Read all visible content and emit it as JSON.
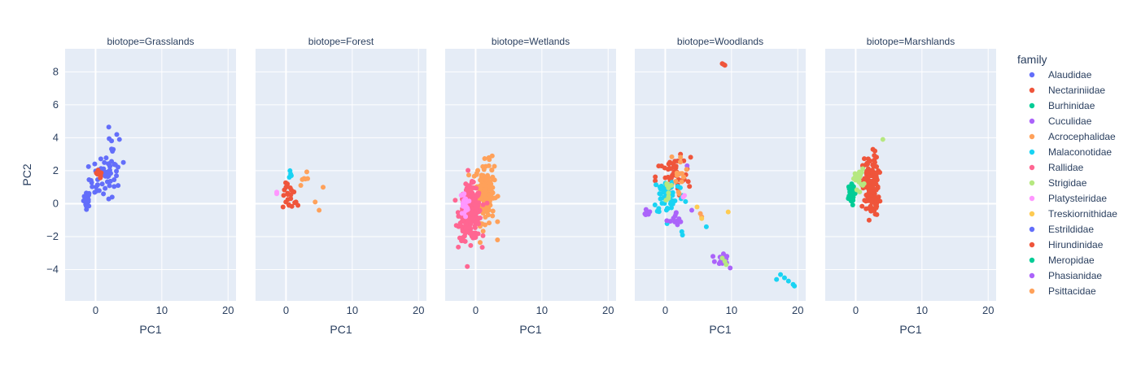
{
  "chart_data": {
    "type": "scatter",
    "x_label": "PC1",
    "y_label": "PC2",
    "xlim": [
      -4.6,
      21.2
    ],
    "ylim": [
      -5.9,
      9.4
    ],
    "x_ticks": [
      0,
      10,
      20
    ],
    "y_ticks": [
      -4,
      -2,
      0,
      2,
      4,
      6,
      8
    ],
    "grid": true,
    "legend": {
      "title": "family",
      "position": "right",
      "items": [
        {
          "name": "Alaudidae",
          "color": "#636efa"
        },
        {
          "name": "Nectariniidae",
          "color": "#EF553B"
        },
        {
          "name": "Burhinidae",
          "color": "#00cc96"
        },
        {
          "name": "Cuculidae",
          "color": "#ab63fa"
        },
        {
          "name": "Acrocephalidae",
          "color": "#FFA15A"
        },
        {
          "name": "Malaconotidae",
          "color": "#19d3f3"
        },
        {
          "name": "Rallidae",
          "color": "#FF6692"
        },
        {
          "name": "Strigidae",
          "color": "#B6E880"
        },
        {
          "name": "Platysteiridae",
          "color": "#FF97FF"
        },
        {
          "name": "Treskiornithidae",
          "color": "#FECB52"
        },
        {
          "name": "Estrildidae",
          "color": "#636efa"
        },
        {
          "name": "Hirundinidae",
          "color": "#EF553B"
        },
        {
          "name": "Meropidae",
          "color": "#00cc96"
        },
        {
          "name": "Phasianidae",
          "color": "#ab63fa"
        },
        {
          "name": "Psittacidae",
          "color": "#FFA15A"
        }
      ]
    },
    "facets": [
      {
        "title": "biotope=Grasslands",
        "groups": [
          {
            "family": "Alaudidae",
            "clusters": [
              {
                "cx": -1.3,
                "cy": 0.3,
                "sx": 0.25,
                "sy": 0.25,
                "n": 25
              },
              {
                "cx": 1.2,
                "cy": 1.5,
                "sx": 1.1,
                "sy": 0.6,
                "n": 45
              },
              {
                "cx": 2.5,
                "cy": 2.9,
                "sx": 0.8,
                "sy": 0.7,
                "n": 14
              }
            ],
            "points": [
              [
                3.2,
                4.2
              ],
              [
                3.6,
                3.9
              ],
              [
                2.5,
                0.4
              ],
              [
                3.4,
                1.1
              ]
            ]
          },
          {
            "family": "Nectariniidae",
            "clusters": [
              {
                "cx": 0.4,
                "cy": 1.7,
                "sx": 0.3,
                "sy": 0.2,
                "n": 10
              }
            ],
            "points": []
          }
        ]
      },
      {
        "title": "biotope=Forest",
        "groups": [
          {
            "family": "Nectariniidae",
            "clusters": [
              {
                "cx": 0.6,
                "cy": 0.4,
                "sx": 0.55,
                "sy": 0.4,
                "n": 18
              }
            ],
            "points": [
              [
                0.2,
                1.2
              ],
              [
                0.0,
                1.0
              ],
              [
                1.5,
                0.1
              ],
              [
                1.8,
                -0.1
              ]
            ]
          },
          {
            "family": "Acrocephalidae",
            "clusters": [
              {
                "cx": 2.7,
                "cy": 1.6,
                "sx": 0.3,
                "sy": 0.35,
                "n": 6
              }
            ],
            "points": [
              [
                4.4,
                0.1
              ],
              [
                5.0,
                -0.4
              ],
              [
                5.6,
                1.0
              ]
            ]
          },
          {
            "family": "Malaconotidae",
            "clusters": [],
            "points": [
              [
                0.6,
                2.0
              ],
              [
                0.7,
                1.8
              ],
              [
                0.5,
                1.6
              ],
              [
                0.8,
                1.7
              ]
            ]
          },
          {
            "family": "Platysteiridae",
            "clusters": [],
            "points": [
              [
                -1.4,
                0.6
              ],
              [
                -1.4,
                0.7
              ]
            ]
          }
        ]
      },
      {
        "title": "biotope=Wetlands",
        "groups": [
          {
            "family": "Acrocephalidae",
            "clusters": [
              {
                "cx": 1.4,
                "cy": 0.7,
                "sx": 0.7,
                "sy": 0.9,
                "n": 170
              }
            ],
            "points": [
              [
                2.5,
                2.9
              ],
              [
                3.3,
                -2.2
              ],
              [
                2.0,
                2.3
              ]
            ]
          },
          {
            "family": "Rallidae",
            "clusters": [
              {
                "cx": -0.8,
                "cy": -0.6,
                "sx": 0.8,
                "sy": 0.8,
                "n": 260
              }
            ],
            "points": []
          },
          {
            "family": "Platysteiridae",
            "clusters": [
              {
                "cx": -1.7,
                "cy": 0.0,
                "sx": 0.3,
                "sy": 0.35,
                "n": 22
              }
            ],
            "points": []
          }
        ]
      },
      {
        "title": "biotope=Woodlands",
        "groups": [
          {
            "family": "Nectariniidae",
            "clusters": [
              {
                "cx": 1.2,
                "cy": 1.6,
                "sx": 1.3,
                "sy": 0.6,
                "n": 45
              }
            ],
            "points": [
              [
                8.6,
                8.5
              ],
              [
                9.0,
                8.4
              ],
              [
                8.8,
                8.45
              ],
              [
                2.3,
                3.0
              ],
              [
                2.8,
                2.6
              ]
            ]
          },
          {
            "family": "Malaconotidae",
            "clusters": [
              {
                "cx": 0.5,
                "cy": 0.5,
                "sx": 1.2,
                "sy": 0.6,
                "n": 55
              }
            ],
            "points": [
              [
                2.5,
                -1.7
              ],
              [
                2.6,
                -1.9
              ],
              [
                6.2,
                -1.4
              ],
              [
                16.8,
                -4.6
              ],
              [
                17.4,
                -4.3
              ],
              [
                18.0,
                -4.5
              ],
              [
                18.6,
                -4.7
              ],
              [
                19.3,
                -4.9
              ],
              [
                19.5,
                -5.0
              ]
            ]
          },
          {
            "family": "Cuculidae",
            "clusters": [
              {
                "cx": 1.7,
                "cy": -1.1,
                "sx": 0.5,
                "sy": 0.3,
                "n": 14
              },
              {
                "cx": 8.5,
                "cy": -3.4,
                "sx": 0.5,
                "sy": 0.2,
                "n": 16
              },
              {
                "cx": -2.7,
                "cy": -0.5,
                "sx": 0.15,
                "sy": 0.1,
                "n": 10
              }
            ],
            "points": [
              [
                3.3,
                2.3
              ],
              [
                4.0,
                -0.4
              ],
              [
                9.8,
                -3.9
              ],
              [
                7.2,
                -3.2
              ]
            ]
          },
          {
            "family": "Strigidae",
            "clusters": [
              {
                "cx": 0.5,
                "cy": 0.8,
                "sx": 0.2,
                "sy": 0.4,
                "n": 8
              }
            ],
            "points": [
              [
                9.0,
                -3.5
              ],
              [
                8.6,
                -3.3
              ],
              [
                9.2,
                -3.7
              ]
            ]
          },
          {
            "family": "Acrocephalidae",
            "clusters": [
              {
                "cx": 2.3,
                "cy": 2.3,
                "sx": 0.5,
                "sy": 0.5,
                "n": 12
              }
            ],
            "points": [
              [
                2.0,
                0.7
              ],
              [
                2.1,
                0.6
              ],
              [
                5.3,
                -0.6
              ],
              [
                5.5,
                -0.8
              ]
            ]
          },
          {
            "family": "Treskiornithidae",
            "clusters": [],
            "points": [
              [
                4.8,
                -0.2
              ],
              [
                5.5,
                -0.9
              ],
              [
                9.5,
                -0.5
              ]
            ]
          },
          {
            "family": "Platysteiridae",
            "clusters": [],
            "points": [
              [
                2.9,
                0.5
              ],
              [
                2.7,
                0.4
              ]
            ]
          }
        ]
      },
      {
        "title": "biotope=Marshlands",
        "groups": [
          {
            "family": "Burhinidae",
            "clusters": [
              {
                "cx": -0.8,
                "cy": 0.5,
                "sx": 0.3,
                "sy": 0.3,
                "n": 40
              }
            ],
            "points": []
          },
          {
            "family": "Nectariniidae",
            "clusters": [
              {
                "cx": 2.3,
                "cy": 1.0,
                "sx": 0.6,
                "sy": 0.9,
                "n": 150
              }
            ],
            "points": [
              [
                2.6,
                3.3
              ],
              [
                2.9,
                3.2
              ]
            ]
          },
          {
            "family": "Strigidae",
            "clusters": [
              {
                "cx": 0.4,
                "cy": 1.5,
                "sx": 0.4,
                "sy": 0.3,
                "n": 20
              }
            ],
            "points": [
              [
                4.1,
                3.9
              ]
            ]
          }
        ]
      }
    ]
  }
}
